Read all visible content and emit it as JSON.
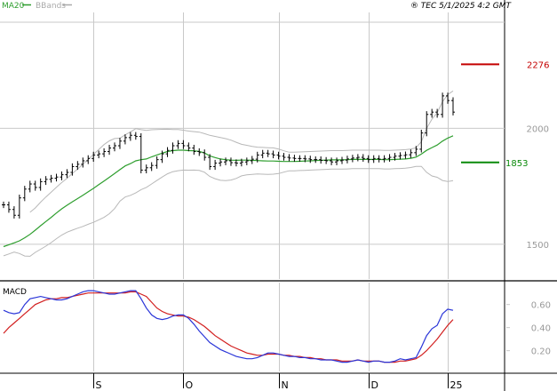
{
  "header": {
    "legend": [
      {
        "label": "MA20",
        "color": "#2e9e2e"
      },
      {
        "label": "BBands",
        "color": "#aaaaaa"
      }
    ],
    "credit": "® TEC 5/1/2025 4:2 GMT"
  },
  "colors": {
    "bg": "#ffffff",
    "grid": "#c9c9c9",
    "axis_text": "#999999",
    "price": "#000000",
    "ma20": "#2e9e2e",
    "bbands": "#b8b8b8",
    "macd": "#2a35d8",
    "signal": "#d21f1f",
    "resistance": "#c40000",
    "support": "#0a8a0a"
  },
  "chart_data": [
    {
      "type": "line",
      "title": "",
      "ylim": [
        1350,
        2500
      ],
      "y_ticks": [
        {
          "value": 1500,
          "label": "1500"
        },
        {
          "value": 2000,
          "label": "2000"
        }
      ],
      "x_ticks": [
        {
          "index": 17,
          "label": "S"
        },
        {
          "index": 34,
          "label": "O"
        },
        {
          "index": 52,
          "label": "N"
        },
        {
          "index": 69,
          "label": "D"
        },
        {
          "index": 84,
          "label": "25"
        }
      ],
      "n_points": 86,
      "levels": [
        {
          "name": "resistance",
          "value": 2276,
          "label": "2276"
        },
        {
          "name": "support",
          "value": 1853,
          "label": "1853"
        }
      ],
      "series": [
        {
          "name": "Close",
          "values": [
            1670,
            1650,
            1625,
            1700,
            1738,
            1760,
            1745,
            1770,
            1780,
            1785,
            1790,
            1800,
            1810,
            1835,
            1845,
            1860,
            1870,
            1885,
            1890,
            1900,
            1915,
            1925,
            1945,
            1960,
            1970,
            1965,
            1820,
            1830,
            1840,
            1865,
            1890,
            1905,
            1925,
            1935,
            1925,
            1915,
            1900,
            1895,
            1875,
            1835,
            1850,
            1855,
            1860,
            1852,
            1850,
            1855,
            1860,
            1867,
            1885,
            1893,
            1890,
            1885,
            1880,
            1875,
            1872,
            1870,
            1870,
            1868,
            1865,
            1865,
            1862,
            1860,
            1855,
            1860,
            1863,
            1868,
            1872,
            1875,
            1870,
            1865,
            1870,
            1867,
            1870,
            1875,
            1880,
            1883,
            1886,
            1895,
            1910,
            1980,
            2060,
            2070,
            2060,
            2140,
            2120,
            2070
          ]
        },
        {
          "name": "MA20",
          "values": [
            1490,
            1498,
            1506,
            1515,
            1528,
            1543,
            1561,
            1580,
            1598,
            1616,
            1635,
            1653,
            1668,
            1683,
            1697,
            1711,
            1726,
            1741,
            1757,
            1773,
            1789,
            1805,
            1822,
            1838,
            1848,
            1860,
            1865,
            1868,
            1877,
            1885,
            1893,
            1900,
            1904,
            1906,
            1906,
            1904,
            1903,
            1901,
            1894,
            1881,
            1874,
            1868,
            1865,
            1863,
            1862,
            1863,
            1863,
            1862,
            1861,
            1860,
            1859,
            1859,
            1858,
            1857,
            1857,
            1857,
            1858,
            1859,
            1860,
            1861,
            1862,
            1863,
            1864,
            1864,
            1864,
            1865,
            1866,
            1866,
            1866,
            1866,
            1866,
            1866,
            1865,
            1865,
            1866,
            1867,
            1868,
            1871,
            1876,
            1889,
            1905,
            1917,
            1928,
            1945,
            1958,
            1968
          ]
        }
      ]
    },
    {
      "type": "line",
      "title": "MACD",
      "ylim": [
        0.02,
        0.79
      ],
      "y_ticks": [
        {
          "value": 0.2,
          "label": "0.20"
        },
        {
          "value": 0.4,
          "label": "0.40"
        },
        {
          "value": 0.6,
          "label": "0.60"
        }
      ],
      "n_points": 86,
      "series": [
        {
          "name": "MACD",
          "values": [
            0.55,
            0.53,
            0.52,
            0.53,
            0.6,
            0.65,
            0.66,
            0.67,
            0.66,
            0.65,
            0.64,
            0.64,
            0.65,
            0.67,
            0.69,
            0.71,
            0.72,
            0.72,
            0.71,
            0.7,
            0.69,
            0.69,
            0.7,
            0.71,
            0.72,
            0.72,
            0.65,
            0.57,
            0.51,
            0.48,
            0.47,
            0.48,
            0.5,
            0.51,
            0.51,
            0.48,
            0.43,
            0.37,
            0.32,
            0.27,
            0.24,
            0.21,
            0.19,
            0.17,
            0.15,
            0.14,
            0.13,
            0.13,
            0.14,
            0.16,
            0.18,
            0.18,
            0.17,
            0.16,
            0.15,
            0.15,
            0.14,
            0.14,
            0.13,
            0.13,
            0.12,
            0.12,
            0.12,
            0.11,
            0.1,
            0.1,
            0.11,
            0.12,
            0.11,
            0.1,
            0.11,
            0.11,
            0.1,
            0.1,
            0.11,
            0.13,
            0.12,
            0.13,
            0.14,
            0.23,
            0.33,
            0.39,
            0.42,
            0.52,
            0.56,
            0.55
          ]
        },
        {
          "name": "Signal",
          "values": [
            0.35,
            0.4,
            0.44,
            0.48,
            0.52,
            0.56,
            0.6,
            0.62,
            0.64,
            0.65,
            0.65,
            0.66,
            0.66,
            0.67,
            0.68,
            0.69,
            0.7,
            0.7,
            0.7,
            0.7,
            0.7,
            0.7,
            0.7,
            0.7,
            0.71,
            0.71,
            0.69,
            0.67,
            0.62,
            0.57,
            0.54,
            0.52,
            0.51,
            0.5,
            0.5,
            0.49,
            0.47,
            0.44,
            0.41,
            0.37,
            0.33,
            0.3,
            0.27,
            0.24,
            0.22,
            0.2,
            0.18,
            0.17,
            0.16,
            0.16,
            0.17,
            0.17,
            0.17,
            0.16,
            0.16,
            0.15,
            0.15,
            0.14,
            0.14,
            0.13,
            0.13,
            0.12,
            0.12,
            0.12,
            0.11,
            0.11,
            0.11,
            0.12,
            0.11,
            0.11,
            0.11,
            0.11,
            0.1,
            0.1,
            0.1,
            0.11,
            0.11,
            0.12,
            0.13,
            0.16,
            0.2,
            0.25,
            0.3,
            0.36,
            0.42,
            0.47
          ]
        }
      ]
    }
  ]
}
